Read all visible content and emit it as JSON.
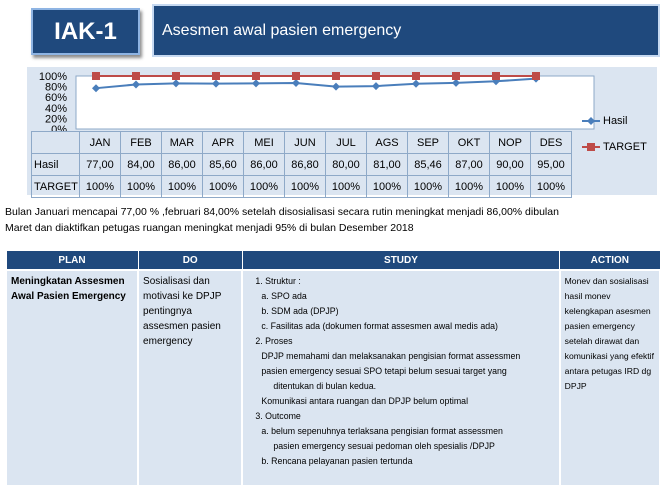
{
  "badge": "IAK-1",
  "title": "Asesmen awal pasien emergency",
  "chart_data": {
    "type": "line",
    "categories": [
      "JAN",
      "FEB",
      "MAR",
      "APR",
      "MEI",
      "JUN",
      "JUL",
      "AGS",
      "SEP",
      "OKT",
      "NOP",
      "DES"
    ],
    "y_ticks": [
      "100%",
      "80%",
      "60%",
      "40%",
      "20%",
      "0%"
    ],
    "ylim": [
      0,
      100
    ],
    "series": [
      {
        "name": "Hasil",
        "values": [
          77.0,
          84.0,
          86.0,
          85.6,
          86.0,
          86.8,
          80.0,
          81.0,
          85.46,
          87.0,
          90.0,
          95.0
        ],
        "color": "#4a7ebb"
      },
      {
        "name": "TARGET",
        "values": [
          100,
          100,
          100,
          100,
          100,
          100,
          100,
          100,
          100,
          100,
          100,
          100
        ],
        "color": "#be4b48"
      }
    ]
  },
  "table": {
    "rows": [
      {
        "label": "Hasil",
        "cells": [
          "77,00",
          "84,00",
          "86,00",
          "85,60",
          "86,00",
          "86,80",
          "80,00",
          "81,00",
          "85,46",
          "87,00",
          "90,00",
          "95,00"
        ]
      },
      {
        "label": "TARGET",
        "cells": [
          "100%",
          "100%",
          "100%",
          "100%",
          "100%",
          "100%",
          "100%",
          "100%",
          "100%",
          "100%",
          "100%",
          "100%"
        ]
      }
    ]
  },
  "paragraph": {
    "line1": "Bulan Januari mencapai 77,00 % ,februari 84,00% setelah disosialisasi secara rutin meningkat menjadi 86,00% dibulan",
    "line2": "Maret dan diaktifkan petugas ruangan meningkat menjadi 95% di bulan Desember 2018"
  },
  "pdsa": {
    "headers": {
      "plan": "PLAN",
      "do": "DO",
      "study": "STUDY",
      "action": "ACTION"
    },
    "plan": "Meningkatan Assesmen Awal Pasien Emergency",
    "do": "Sosialisasi dan motivasi ke DPJP pentingnya assesmen pasien emergency",
    "study": {
      "s1": "1. Struktur :",
      "s1a": "a. SPO ada",
      "s1b": "b. SDM ada (DPJP)",
      "s1c": "c. Fasilitas ada (dokumen format assesmen awal  medis ada)",
      "s2": "2. Proses",
      "s2a": "DPJP memahami dan melaksanakan pengisian format assessmen",
      "s2b": "pasien emergency sesuai SPO tetapi belum sesuai target yang",
      "s2c": "ditentukan di  bulan kedua.",
      "s2d": "Komunikasi antara ruangan dan DPJP belum optimal",
      "s3": "3. Outcome",
      "s3a": "a. belum sepenuhnya terlaksana pengisian format assessmen",
      "s3a2": "pasien emergency sesuai pedoman oleh spesialis /DPJP",
      "s3b": "b. Rencana pelayanan  pasien  tertunda"
    },
    "action": "Monev dan sosialisasi hasil monev kelengkapan asesmen pasien emergency setelah dirawat dan komunikasi yang efektif antara petugas IRD dg DPJP"
  }
}
